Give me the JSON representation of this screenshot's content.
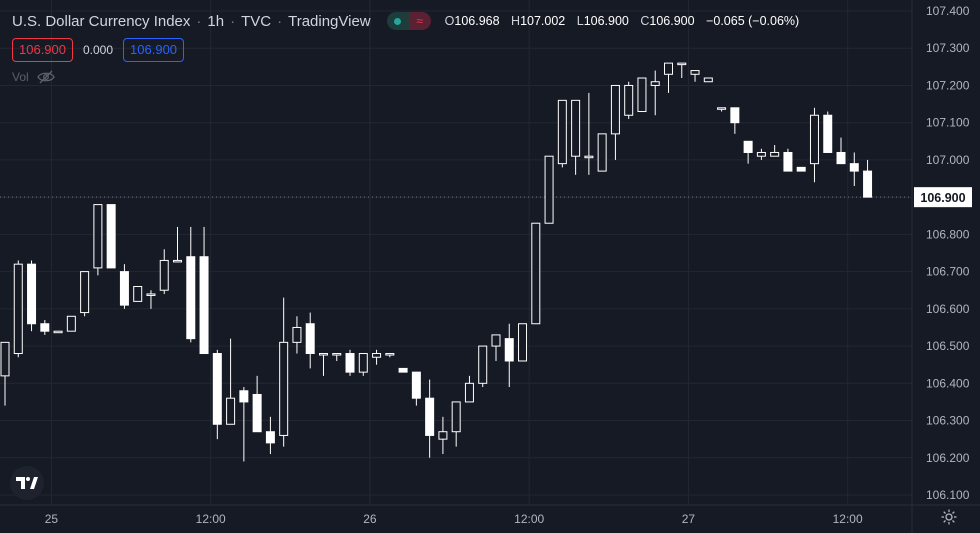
{
  "header": {
    "title": "U.S. Dollar Currency Index",
    "interval": "1h",
    "exchange": "TVC",
    "brand": "TradingView",
    "ohlc": {
      "o_label": "O",
      "o_value": "106.968",
      "h_label": "H",
      "h_value": "107.002",
      "l_label": "L",
      "l_value": "106.900",
      "c_label": "C",
      "c_value": "106.900",
      "change": "−0.065 (−0.06%)"
    }
  },
  "price_boxes": {
    "bid": "106.900",
    "spread": "0.000",
    "ask": "106.900"
  },
  "volume_label": "Vol",
  "icons": {
    "market": "market-status-icon",
    "eye": "eye-off-icon",
    "logo": "tradingview-logo-icon",
    "settings": "settings-gear-icon"
  },
  "colors": {
    "background": "#161a25",
    "grid": "#232733",
    "candle": "#ffffff",
    "text": "#d1d4dc",
    "last_price_label": "#ffffff"
  },
  "chart_data": {
    "type": "candlestick",
    "ylim": [
      106.08,
      107.44
    ],
    "y_ticks": [
      "107.400",
      "107.300",
      "107.200",
      "107.100",
      "107.000",
      "106.900",
      "106.800",
      "106.700",
      "106.600",
      "106.500",
      "106.400",
      "106.300",
      "106.200",
      "106.100"
    ],
    "x_ticks": [
      {
        "index": 3.5,
        "label": "25"
      },
      {
        "index": 15.5,
        "label": "12:00"
      },
      {
        "index": 27.5,
        "label": "26"
      },
      {
        "index": 39.5,
        "label": "12:00"
      },
      {
        "index": 51.5,
        "label": "27"
      },
      {
        "index": 63.5,
        "label": "12:00"
      }
    ],
    "last_price": "106.900",
    "grid": true,
    "candles": [
      [
        106.42,
        106.51,
        106.34,
        106.51
      ],
      [
        106.48,
        106.73,
        106.47,
        106.72
      ],
      [
        106.72,
        106.73,
        106.54,
        106.56
      ],
      [
        106.56,
        106.57,
        106.53,
        106.54
      ],
      [
        106.54,
        106.54,
        106.54,
        106.54
      ],
      [
        106.54,
        106.58,
        106.54,
        106.58
      ],
      [
        106.59,
        106.7,
        106.58,
        106.7
      ],
      [
        106.71,
        106.88,
        106.69,
        106.88
      ],
      [
        106.88,
        106.88,
        106.71,
        106.71
      ],
      [
        106.7,
        106.72,
        106.6,
        106.61
      ],
      [
        106.62,
        106.66,
        106.62,
        106.66
      ],
      [
        106.64,
        106.65,
        106.6,
        106.64
      ],
      [
        106.65,
        106.76,
        106.64,
        106.73
      ],
      [
        106.73,
        106.82,
        106.73,
        106.73
      ],
      [
        106.74,
        106.82,
        106.51,
        106.52
      ],
      [
        106.74,
        106.82,
        106.48,
        106.48
      ],
      [
        106.48,
        106.49,
        106.25,
        106.29
      ],
      [
        106.29,
        106.52,
        106.29,
        106.36
      ],
      [
        106.38,
        106.39,
        106.19,
        106.35
      ],
      [
        106.37,
        106.42,
        106.27,
        106.27
      ],
      [
        106.27,
        106.31,
        106.21,
        106.24
      ],
      [
        106.26,
        106.63,
        106.23,
        106.51
      ],
      [
        106.51,
        106.58,
        106.48,
        106.55
      ],
      [
        106.56,
        106.59,
        106.44,
        106.48
      ],
      [
        106.48,
        106.48,
        106.42,
        106.48
      ],
      [
        106.48,
        106.48,
        106.46,
        106.48
      ],
      [
        106.48,
        106.49,
        106.42,
        106.43
      ],
      [
        106.43,
        106.48,
        106.42,
        106.48
      ],
      [
        106.47,
        106.49,
        106.45,
        106.48
      ],
      [
        106.48,
        106.48,
        106.47,
        106.48
      ],
      [
        106.44,
        106.44,
        106.43,
        106.43
      ],
      [
        106.43,
        106.43,
        106.34,
        106.36
      ],
      [
        106.36,
        106.41,
        106.2,
        106.26
      ],
      [
        106.25,
        106.31,
        106.21,
        106.27
      ],
      [
        106.27,
        106.35,
        106.23,
        106.35
      ],
      [
        106.35,
        106.42,
        106.35,
        106.4
      ],
      [
        106.4,
        106.5,
        106.39,
        106.5
      ],
      [
        106.5,
        106.53,
        106.46,
        106.53
      ],
      [
        106.52,
        106.56,
        106.39,
        106.46
      ],
      [
        106.46,
        106.56,
        106.46,
        106.56
      ],
      [
        106.56,
        106.83,
        106.56,
        106.83
      ],
      [
        106.83,
        107.01,
        106.84,
        107.01
      ],
      [
        106.99,
        107.16,
        106.98,
        107.16
      ],
      [
        107.01,
        107.16,
        106.96,
        107.16
      ],
      [
        107.01,
        107.18,
        106.96,
        107.01
      ],
      [
        106.97,
        107.07,
        106.98,
        107.07
      ],
      [
        107.07,
        107.2,
        107.0,
        107.2
      ],
      [
        107.12,
        107.21,
        107.11,
        107.2
      ],
      [
        107.13,
        107.22,
        107.13,
        107.22
      ],
      [
        107.2,
        107.24,
        107.12,
        107.21
      ],
      [
        107.23,
        107.26,
        107.18,
        107.26
      ],
      [
        107.26,
        107.26,
        107.22,
        107.26
      ],
      [
        107.23,
        107.24,
        107.21,
        107.24
      ],
      [
        107.21,
        107.22,
        107.21,
        107.22
      ],
      [
        107.14,
        107.14,
        107.13,
        107.14
      ],
      [
        107.14,
        107.14,
        107.07,
        107.1
      ],
      [
        107.05,
        107.05,
        106.99,
        107.02
      ],
      [
        107.01,
        107.03,
        107.0,
        107.02
      ],
      [
        107.01,
        107.04,
        107.02,
        107.02
      ],
      [
        107.02,
        107.03,
        106.97,
        106.97
      ],
      [
        106.98,
        106.98,
        106.97,
        106.97
      ],
      [
        106.99,
        107.14,
        106.94,
        107.12
      ],
      [
        107.12,
        107.13,
        107.02,
        107.02
      ],
      [
        107.02,
        107.06,
        107.0,
        106.99
      ],
      [
        106.99,
        107.02,
        106.93,
        106.97
      ],
      [
        106.97,
        107.0,
        106.9,
        106.9
      ]
    ]
  }
}
